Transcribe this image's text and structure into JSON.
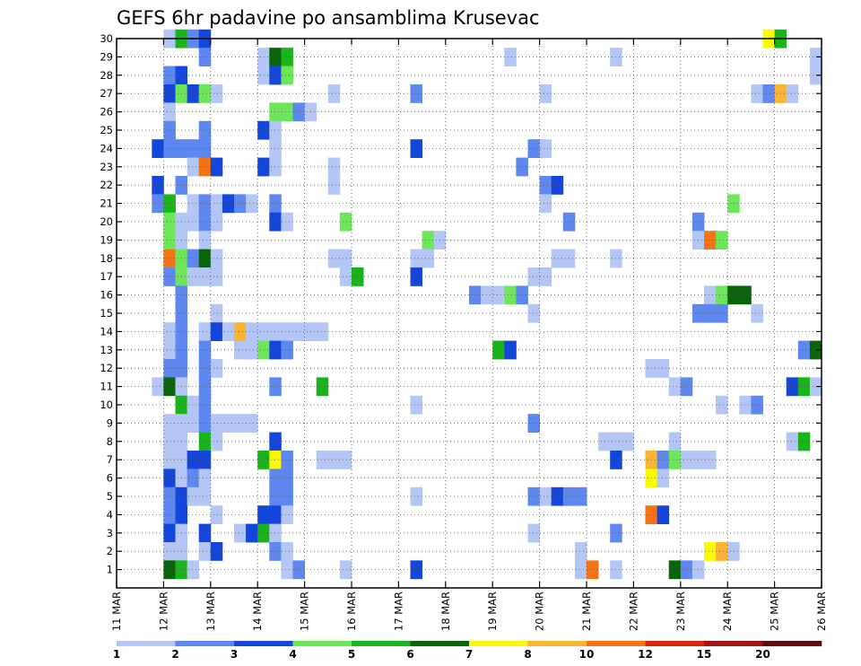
{
  "chart_data": {
    "type": "heatmap",
    "title": "GEFS 6hr padavine po ansamblima Krusevac",
    "x_tick_labels": [
      "11 MAR",
      "12 MAR",
      "13 MAR",
      "14 MAR",
      "15 MAR",
      "16 MAR",
      "17 MAR",
      "18 MAR",
      "19 MAR",
      "20 MAR",
      "21 MAR",
      "22 MAR",
      "23 MAR",
      "24 MAR",
      "25 MAR",
      "26 MAR"
    ],
    "x_range_days": [
      0,
      15
    ],
    "y_tick_labels": [
      "1",
      "2",
      "3",
      "4",
      "5",
      "6",
      "7",
      "8",
      "9",
      "10",
      "11",
      "12",
      "13",
      "14",
      "15",
      "16",
      "17",
      "18",
      "19",
      "20",
      "21",
      "22",
      "23",
      "24",
      "25",
      "26",
      "27",
      "28",
      "29",
      "30"
    ],
    "y_range": [
      0,
      30
    ],
    "grid": true,
    "colorbar": {
      "levels": [
        1,
        2,
        3,
        4,
        5,
        6,
        7,
        8,
        10,
        12,
        15,
        20
      ],
      "labels": [
        "1",
        "2",
        "3",
        "4",
        "5",
        "6",
        "7",
        "8",
        "10",
        "12",
        "15",
        "20"
      ],
      "colors": [
        "#b4c6f5",
        "#5f87f0",
        "#1446dc",
        "#6ee65a",
        "#19b419",
        "#0a640a",
        "#fafa00",
        "#fab432",
        "#f57314",
        "#dc280a",
        "#a01414",
        "#640a0a"
      ]
    },
    "cells": [
      [
        30,
        4,
        1
      ],
      [
        30,
        5,
        5
      ],
      [
        30,
        6,
        2
      ],
      [
        30,
        7,
        3
      ],
      [
        30,
        55,
        7
      ],
      [
        30,
        56,
        5
      ],
      [
        29,
        7,
        2
      ],
      [
        29,
        12,
        1
      ],
      [
        29,
        13,
        6
      ],
      [
        29,
        14,
        5
      ],
      [
        29,
        33,
        1
      ],
      [
        29,
        42,
        1
      ],
      [
        29,
        59,
        1
      ],
      [
        28,
        4,
        2
      ],
      [
        28,
        5,
        3
      ],
      [
        28,
        12,
        1
      ],
      [
        28,
        13,
        3
      ],
      [
        28,
        14,
        4
      ],
      [
        28,
        59,
        1
      ],
      [
        27,
        4,
        3
      ],
      [
        27,
        5,
        4
      ],
      [
        27,
        6,
        3
      ],
      [
        27,
        7,
        4
      ],
      [
        27,
        8,
        1
      ],
      [
        27,
        18,
        1
      ],
      [
        27,
        25,
        2
      ],
      [
        27,
        36,
        1
      ],
      [
        27,
        54,
        1
      ],
      [
        27,
        55,
        2
      ],
      [
        27,
        56,
        8
      ],
      [
        27,
        57,
        1
      ],
      [
        26,
        4,
        1
      ],
      [
        26,
        13,
        4
      ],
      [
        26,
        14,
        4
      ],
      [
        26,
        15,
        2
      ],
      [
        26,
        16,
        1
      ],
      [
        25,
        4,
        2
      ],
      [
        25,
        7,
        2
      ],
      [
        25,
        12,
        3
      ],
      [
        25,
        13,
        1
      ],
      [
        24,
        3,
        3
      ],
      [
        24,
        4,
        2
      ],
      [
        24,
        5,
        2
      ],
      [
        24,
        6,
        2
      ],
      [
        24,
        7,
        2
      ],
      [
        24,
        13,
        1
      ],
      [
        24,
        25,
        3
      ],
      [
        24,
        35,
        2
      ],
      [
        24,
        36,
        1
      ],
      [
        23,
        6,
        1
      ],
      [
        23,
        7,
        9
      ],
      [
        23,
        8,
        3
      ],
      [
        23,
        12,
        3
      ],
      [
        23,
        13,
        1
      ],
      [
        23,
        18,
        1
      ],
      [
        23,
        34,
        2
      ],
      [
        22,
        3,
        3
      ],
      [
        22,
        5,
        2
      ],
      [
        22,
        18,
        1
      ],
      [
        22,
        36,
        2
      ],
      [
        22,
        37,
        3
      ],
      [
        21,
        3,
        2
      ],
      [
        21,
        4,
        5
      ],
      [
        21,
        6,
        1
      ],
      [
        21,
        7,
        2
      ],
      [
        21,
        8,
        1
      ],
      [
        21,
        9,
        3
      ],
      [
        21,
        10,
        2
      ],
      [
        21,
        11,
        1
      ],
      [
        21,
        13,
        2
      ],
      [
        21,
        36,
        1
      ],
      [
        21,
        52,
        4
      ],
      [
        20,
        4,
        4
      ],
      [
        20,
        5,
        1
      ],
      [
        20,
        6,
        1
      ],
      [
        20,
        7,
        2
      ],
      [
        20,
        8,
        1
      ],
      [
        20,
        13,
        3
      ],
      [
        20,
        14,
        1
      ],
      [
        20,
        19,
        4
      ],
      [
        20,
        38,
        2
      ],
      [
        20,
        49,
        2
      ],
      [
        19,
        4,
        4
      ],
      [
        19,
        5,
        1
      ],
      [
        19,
        7,
        1
      ],
      [
        19,
        26,
        4
      ],
      [
        19,
        27,
        1
      ],
      [
        19,
        49,
        1
      ],
      [
        19,
        50,
        9
      ],
      [
        19,
        51,
        4
      ],
      [
        18,
        4,
        9
      ],
      [
        18,
        5,
        4
      ],
      [
        18,
        6,
        2
      ],
      [
        18,
        7,
        6
      ],
      [
        18,
        8,
        1
      ],
      [
        18,
        18,
        1
      ],
      [
        18,
        19,
        1
      ],
      [
        18,
        25,
        1
      ],
      [
        18,
        26,
        1
      ],
      [
        18,
        37,
        1
      ],
      [
        18,
        38,
        1
      ],
      [
        18,
        42,
        1
      ],
      [
        17,
        4,
        2
      ],
      [
        17,
        5,
        4
      ],
      [
        17,
        6,
        1
      ],
      [
        17,
        7,
        1
      ],
      [
        17,
        8,
        1
      ],
      [
        17,
        19,
        1
      ],
      [
        17,
        20,
        5
      ],
      [
        17,
        25,
        3
      ],
      [
        17,
        35,
        1
      ],
      [
        17,
        36,
        1
      ],
      [
        16,
        5,
        2
      ],
      [
        16,
        30,
        2
      ],
      [
        16,
        31,
        1
      ],
      [
        16,
        32,
        1
      ],
      [
        16,
        33,
        4
      ],
      [
        16,
        34,
        2
      ],
      [
        16,
        50,
        1
      ],
      [
        16,
        51,
        4
      ],
      [
        16,
        52,
        6
      ],
      [
        16,
        53,
        6
      ],
      [
        15,
        5,
        2
      ],
      [
        15,
        8,
        1
      ],
      [
        15,
        35,
        1
      ],
      [
        15,
        49,
        2
      ],
      [
        15,
        50,
        2
      ],
      [
        15,
        51,
        2
      ],
      [
        15,
        54,
        1
      ],
      [
        14,
        4,
        1
      ],
      [
        14,
        5,
        2
      ],
      [
        14,
        7,
        1
      ],
      [
        14,
        8,
        3
      ],
      [
        14,
        9,
        1
      ],
      [
        14,
        10,
        8
      ],
      [
        14,
        11,
        1
      ],
      [
        14,
        12,
        1
      ],
      [
        14,
        13,
        1
      ],
      [
        14,
        14,
        1
      ],
      [
        14,
        15,
        1
      ],
      [
        14,
        16,
        1
      ],
      [
        14,
        17,
        1
      ],
      [
        13,
        4,
        1
      ],
      [
        13,
        5,
        2
      ],
      [
        13,
        7,
        2
      ],
      [
        13,
        10,
        1
      ],
      [
        13,
        11,
        1
      ],
      [
        13,
        12,
        4
      ],
      [
        13,
        13,
        3
      ],
      [
        13,
        14,
        2
      ],
      [
        13,
        32,
        5
      ],
      [
        13,
        33,
        3
      ],
      [
        13,
        58,
        2
      ],
      [
        13,
        59,
        6
      ],
      [
        12,
        4,
        2
      ],
      [
        12,
        5,
        2
      ],
      [
        12,
        7,
        2
      ],
      [
        12,
        8,
        1
      ],
      [
        12,
        45,
        1
      ],
      [
        12,
        46,
        1
      ],
      [
        11,
        3,
        1
      ],
      [
        11,
        4,
        6
      ],
      [
        11,
        5,
        1
      ],
      [
        11,
        7,
        2
      ],
      [
        11,
        13,
        2
      ],
      [
        11,
        17,
        5
      ],
      [
        11,
        47,
        1
      ],
      [
        11,
        48,
        2
      ],
      [
        11,
        57,
        3
      ],
      [
        11,
        58,
        5
      ],
      [
        11,
        59,
        1
      ],
      [
        10,
        5,
        5
      ],
      [
        10,
        6,
        1
      ],
      [
        10,
        7,
        2
      ],
      [
        10,
        25,
        1
      ],
      [
        10,
        51,
        1
      ],
      [
        10,
        53,
        1
      ],
      [
        10,
        54,
        2
      ],
      [
        9,
        4,
        1
      ],
      [
        9,
        5,
        1
      ],
      [
        9,
        6,
        1
      ],
      [
        9,
        7,
        2
      ],
      [
        9,
        8,
        1
      ],
      [
        9,
        9,
        1
      ],
      [
        9,
        10,
        1
      ],
      [
        9,
        11,
        1
      ],
      [
        9,
        35,
        2
      ],
      [
        8,
        4,
        1
      ],
      [
        8,
        5,
        1
      ],
      [
        8,
        7,
        5
      ],
      [
        8,
        8,
        1
      ],
      [
        8,
        13,
        3
      ],
      [
        8,
        41,
        1
      ],
      [
        8,
        42,
        1
      ],
      [
        8,
        43,
        1
      ],
      [
        8,
        47,
        1
      ],
      [
        8,
        57,
        1
      ],
      [
        8,
        58,
        5
      ],
      [
        7,
        4,
        1
      ],
      [
        7,
        5,
        1
      ],
      [
        7,
        6,
        3
      ],
      [
        7,
        7,
        3
      ],
      [
        7,
        12,
        5
      ],
      [
        7,
        13,
        7
      ],
      [
        7,
        14,
        2
      ],
      [
        7,
        17,
        1
      ],
      [
        7,
        18,
        1
      ],
      [
        7,
        19,
        1
      ],
      [
        7,
        42,
        3
      ],
      [
        7,
        45,
        8
      ],
      [
        7,
        46,
        2
      ],
      [
        7,
        47,
        4
      ],
      [
        7,
        48,
        1
      ],
      [
        7,
        49,
        1
      ],
      [
        7,
        50,
        1
      ],
      [
        6,
        4,
        3
      ],
      [
        6,
        5,
        1
      ],
      [
        6,
        6,
        2
      ],
      [
        6,
        7,
        1
      ],
      [
        6,
        13,
        2
      ],
      [
        6,
        14,
        2
      ],
      [
        6,
        45,
        7
      ],
      [
        6,
        46,
        1
      ],
      [
        5,
        4,
        2
      ],
      [
        5,
        5,
        3
      ],
      [
        5,
        6,
        1
      ],
      [
        5,
        7,
        1
      ],
      [
        5,
        13,
        2
      ],
      [
        5,
        14,
        2
      ],
      [
        5,
        25,
        1
      ],
      [
        5,
        35,
        2
      ],
      [
        5,
        36,
        1
      ],
      [
        5,
        37,
        3
      ],
      [
        5,
        38,
        2
      ],
      [
        5,
        39,
        2
      ],
      [
        4,
        4,
        2
      ],
      [
        4,
        5,
        3
      ],
      [
        4,
        8,
        1
      ],
      [
        4,
        12,
        3
      ],
      [
        4,
        13,
        3
      ],
      [
        4,
        14,
        1
      ],
      [
        4,
        45,
        9
      ],
      [
        4,
        46,
        3
      ],
      [
        3,
        4,
        3
      ],
      [
        3,
        5,
        1
      ],
      [
        3,
        7,
        3
      ],
      [
        3,
        10,
        1
      ],
      [
        3,
        11,
        3
      ],
      [
        3,
        12,
        5
      ],
      [
        3,
        13,
        1
      ],
      [
        3,
        35,
        1
      ],
      [
        3,
        42,
        2
      ],
      [
        2,
        4,
        1
      ],
      [
        2,
        5,
        1
      ],
      [
        2,
        7,
        1
      ],
      [
        2,
        8,
        3
      ],
      [
        2,
        13,
        2
      ],
      [
        2,
        14,
        1
      ],
      [
        2,
        39,
        1
      ],
      [
        2,
        50,
        7
      ],
      [
        2,
        51,
        8
      ],
      [
        2,
        52,
        1
      ],
      [
        1,
        4,
        6
      ],
      [
        1,
        5,
        5
      ],
      [
        1,
        6,
        1
      ],
      [
        1,
        14,
        1
      ],
      [
        1,
        15,
        2
      ],
      [
        1,
        19,
        1
      ],
      [
        1,
        25,
        3
      ],
      [
        1,
        39,
        1
      ],
      [
        1,
        40,
        9
      ],
      [
        1,
        42,
        1
      ],
      [
        1,
        47,
        6
      ],
      [
        1,
        48,
        2
      ],
      [
        1,
        49,
        1
      ]
    ]
  }
}
